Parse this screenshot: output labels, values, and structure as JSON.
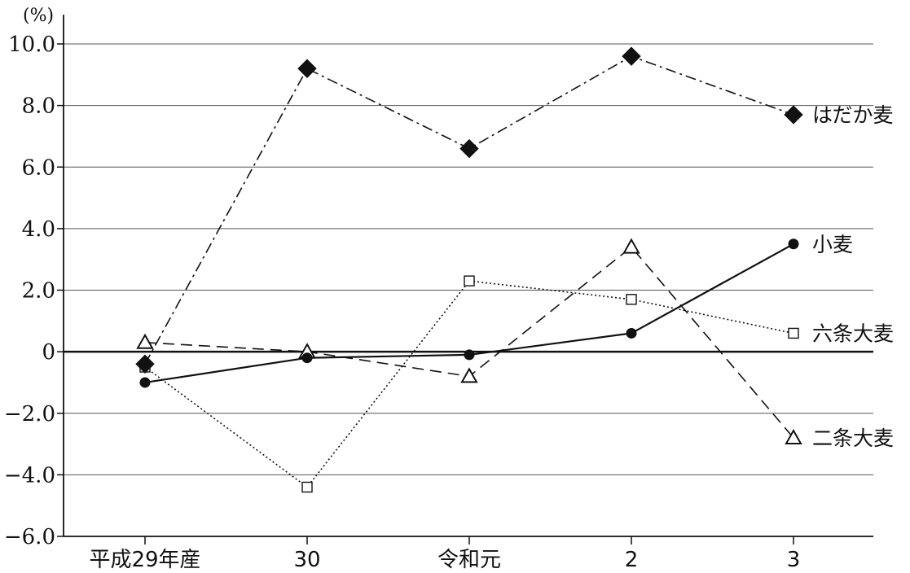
{
  "chart_data": {
    "type": "line",
    "unit": "(%)",
    "categories": [
      "平成29年産",
      "30",
      "令和元",
      "2",
      "3"
    ],
    "y_ticks": [
      "10.0",
      "8.0",
      "6.0",
      "4.0",
      "2.0",
      "0",
      "−2.0",
      "−4.0",
      "−6.0"
    ],
    "ylim": [
      -6,
      10
    ],
    "grid": true,
    "series": [
      {
        "name": "はだか麦",
        "values": [
          -0.4,
          9.2,
          6.6,
          9.6,
          7.7
        ],
        "marker": "diamond-filled",
        "line_style": "dash-dot",
        "color": "#111111"
      },
      {
        "name": "小麦",
        "values": [
          -1.0,
          -0.2,
          -0.1,
          0.6,
          3.5
        ],
        "marker": "circle-filled",
        "line_style": "solid",
        "color": "#111111"
      },
      {
        "name": "六条大麦",
        "values": [
          -0.5,
          -4.4,
          2.3,
          1.7,
          0.6
        ],
        "marker": "square-open",
        "line_style": "dotted",
        "color": "#111111"
      },
      {
        "name": "二条大麦",
        "values": [
          0.3,
          0.0,
          -0.8,
          3.4,
          -2.8
        ],
        "marker": "triangle-open",
        "line_style": "dashed",
        "color": "#111111"
      }
    ]
  }
}
